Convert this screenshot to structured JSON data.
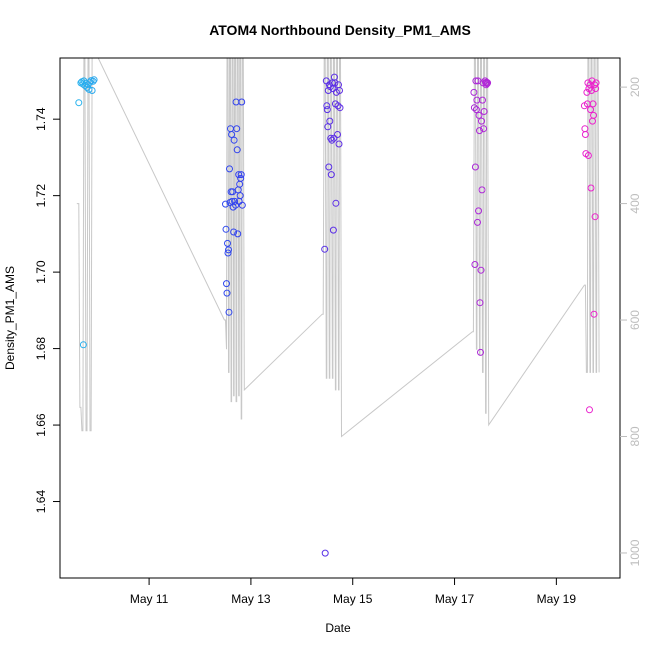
{
  "chart_data": {
    "type": "scatter",
    "title": "ATOM4 Northbound Density_PM1_AMS",
    "xlabel": "Date",
    "ylabel": "Density_PM1_AMS",
    "x_ticks": [
      {
        "label": "May 11",
        "day": 11
      },
      {
        "label": "May 13",
        "day": 13
      },
      {
        "label": "May 15",
        "day": 15
      },
      {
        "label": "May 17",
        "day": 17
      },
      {
        "label": "May 19",
        "day": 19
      }
    ],
    "y_ticks": [
      "1.64",
      "1.66",
      "1.68",
      "1.70",
      "1.72",
      "1.74"
    ],
    "y_tick_values": [
      1.64,
      1.66,
      1.68,
      1.7,
      1.72,
      1.74
    ],
    "xlim": [
      9.25,
      20.25
    ],
    "ylim": [
      1.62,
      1.756
    ],
    "y2_ticks": [
      "200",
      "400",
      "600",
      "800",
      "1000"
    ],
    "y2_tick_values": [
      200,
      400,
      600,
      800,
      1000
    ],
    "y2lim": [
      1043,
      150
    ],
    "colors": {
      "line": "#c8c8c8",
      "frame": "#000000",
      "right_axis": "#bdbdbd",
      "series_start": "#2ab4ee",
      "series_mid": "#3333ee",
      "series_end": "#ee22cc"
    },
    "points": [
      {
        "day": 9.62,
        "value": 1.7443
      },
      {
        "day": 9.66,
        "value": 1.7495
      },
      {
        "day": 9.68,
        "value": 1.7498
      },
      {
        "day": 9.7,
        "value": 1.7492
      },
      {
        "day": 9.72,
        "value": 1.75
      },
      {
        "day": 9.74,
        "value": 1.7488
      },
      {
        "day": 9.76,
        "value": 1.7494
      },
      {
        "day": 9.78,
        "value": 1.7483
      },
      {
        "day": 9.8,
        "value": 1.749
      },
      {
        "day": 9.82,
        "value": 1.7478
      },
      {
        "day": 9.84,
        "value": 1.7497
      },
      {
        "day": 9.86,
        "value": 1.7501
      },
      {
        "day": 9.88,
        "value": 1.7475
      },
      {
        "day": 9.9,
        "value": 1.7499
      },
      {
        "day": 9.92,
        "value": 1.7503
      },
      {
        "day": 9.71,
        "value": 1.681
      },
      {
        "day": 12.5,
        "value": 1.7178
      },
      {
        "day": 12.51,
        "value": 1.7112
      },
      {
        "day": 12.52,
        "value": 1.697
      },
      {
        "day": 12.53,
        "value": 1.6945
      },
      {
        "day": 12.54,
        "value": 1.7075
      },
      {
        "day": 12.55,
        "value": 1.705
      },
      {
        "day": 12.56,
        "value": 1.7058
      },
      {
        "day": 12.57,
        "value": 1.6895
      },
      {
        "day": 12.58,
        "value": 1.727
      },
      {
        "day": 12.59,
        "value": 1.7182
      },
      {
        "day": 12.6,
        "value": 1.7375
      },
      {
        "day": 12.61,
        "value": 1.721
      },
      {
        "day": 12.62,
        "value": 1.736
      },
      {
        "day": 12.63,
        "value": 1.7185
      },
      {
        "day": 12.64,
        "value": 1.721
      },
      {
        "day": 12.65,
        "value": 1.717
      },
      {
        "day": 12.66,
        "value": 1.7105
      },
      {
        "day": 12.67,
        "value": 1.7345
      },
      {
        "day": 12.68,
        "value": 1.7185
      },
      {
        "day": 12.7,
        "value": 1.7175
      },
      {
        "day": 12.71,
        "value": 1.7445
      },
      {
        "day": 12.72,
        "value": 1.7375
      },
      {
        "day": 12.73,
        "value": 1.732
      },
      {
        "day": 12.74,
        "value": 1.71
      },
      {
        "day": 12.75,
        "value": 1.7215
      },
      {
        "day": 12.76,
        "value": 1.7255
      },
      {
        "day": 12.77,
        "value": 1.7185
      },
      {
        "day": 12.78,
        "value": 1.723
      },
      {
        "day": 12.79,
        "value": 1.72
      },
      {
        "day": 12.8,
        "value": 1.7245
      },
      {
        "day": 12.81,
        "value": 1.7255
      },
      {
        "day": 12.82,
        "value": 1.7445
      },
      {
        "day": 12.83,
        "value": 1.7175
      },
      {
        "day": 14.45,
        "value": 1.706
      },
      {
        "day": 14.46,
        "value": 1.6265
      },
      {
        "day": 14.48,
        "value": 1.75
      },
      {
        "day": 14.49,
        "value": 1.7435
      },
      {
        "day": 14.5,
        "value": 1.7425
      },
      {
        "day": 14.51,
        "value": 1.738
      },
      {
        "day": 14.52,
        "value": 1.7475
      },
      {
        "day": 14.53,
        "value": 1.7275
      },
      {
        "day": 14.54,
        "value": 1.749
      },
      {
        "day": 14.55,
        "value": 1.7395
      },
      {
        "day": 14.56,
        "value": 1.7485
      },
      {
        "day": 14.57,
        "value": 1.735
      },
      {
        "day": 14.58,
        "value": 1.7255
      },
      {
        "day": 14.59,
        "value": 1.7345
      },
      {
        "day": 14.6,
        "value": 1.7495
      },
      {
        "day": 14.61,
        "value": 1.748
      },
      {
        "day": 14.62,
        "value": 1.711
      },
      {
        "day": 14.63,
        "value": 1.735
      },
      {
        "day": 14.64,
        "value": 1.751
      },
      {
        "day": 14.65,
        "value": 1.7495
      },
      {
        "day": 14.66,
        "value": 1.744
      },
      {
        "day": 14.67,
        "value": 1.718
      },
      {
        "day": 14.68,
        "value": 1.747
      },
      {
        "day": 14.7,
        "value": 1.736
      },
      {
        "day": 14.71,
        "value": 1.7435
      },
      {
        "day": 14.72,
        "value": 1.749
      },
      {
        "day": 14.73,
        "value": 1.7335
      },
      {
        "day": 14.74,
        "value": 1.7475
      },
      {
        "day": 14.75,
        "value": 1.743
      },
      {
        "day": 17.38,
        "value": 1.747
      },
      {
        "day": 17.39,
        "value": 1.743
      },
      {
        "day": 17.4,
        "value": 1.702
      },
      {
        "day": 17.41,
        "value": 1.7275
      },
      {
        "day": 17.42,
        "value": 1.75
      },
      {
        "day": 17.43,
        "value": 1.7425
      },
      {
        "day": 17.44,
        "value": 1.745
      },
      {
        "day": 17.45,
        "value": 1.713
      },
      {
        "day": 17.46,
        "value": 1.75
      },
      {
        "day": 17.47,
        "value": 1.716
      },
      {
        "day": 17.48,
        "value": 1.741
      },
      {
        "day": 17.49,
        "value": 1.737
      },
      {
        "day": 17.5,
        "value": 1.692
      },
      {
        "day": 17.51,
        "value": 1.679
      },
      {
        "day": 17.52,
        "value": 1.7005
      },
      {
        "day": 17.53,
        "value": 1.7395
      },
      {
        "day": 17.54,
        "value": 1.7215
      },
      {
        "day": 17.55,
        "value": 1.745
      },
      {
        "day": 17.56,
        "value": 1.7495
      },
      {
        "day": 17.57,
        "value": 1.7375
      },
      {
        "day": 17.58,
        "value": 1.742
      },
      {
        "day": 17.6,
        "value": 1.75
      },
      {
        "day": 17.61,
        "value": 1.7495
      },
      {
        "day": 17.62,
        "value": 1.749
      },
      {
        "day": 17.63,
        "value": 1.7497
      },
      {
        "day": 17.64,
        "value": 1.7493
      },
      {
        "day": 17.65,
        "value": 1.7495
      },
      {
        "day": 19.55,
        "value": 1.7435
      },
      {
        "day": 19.56,
        "value": 1.7375
      },
      {
        "day": 19.57,
        "value": 1.736
      },
      {
        "day": 19.58,
        "value": 1.731
      },
      {
        "day": 19.6,
        "value": 1.747
      },
      {
        "day": 19.61,
        "value": 1.744
      },
      {
        "day": 19.62,
        "value": 1.7495
      },
      {
        "day": 19.63,
        "value": 1.7305
      },
      {
        "day": 19.64,
        "value": 1.748
      },
      {
        "day": 19.65,
        "value": 1.664
      },
      {
        "day": 19.66,
        "value": 1.749
      },
      {
        "day": 19.67,
        "value": 1.7425
      },
      {
        "day": 19.68,
        "value": 1.722
      },
      {
        "day": 19.69,
        "value": 1.7475
      },
      {
        "day": 19.7,
        "value": 1.75
      },
      {
        "day": 19.71,
        "value": 1.7395
      },
      {
        "day": 19.72,
        "value": 1.744
      },
      {
        "day": 19.73,
        "value": 1.741
      },
      {
        "day": 19.74,
        "value": 1.689
      },
      {
        "day": 19.75,
        "value": 1.749
      },
      {
        "day": 19.76,
        "value": 1.7145
      },
      {
        "day": 19.77,
        "value": 1.748
      },
      {
        "day": 19.78,
        "value": 1.7495
      }
    ],
    "altitude_line": [
      [
        9.58,
        400
      ],
      [
        9.62,
        400
      ],
      [
        9.64,
        750
      ],
      [
        9.66,
        750
      ],
      [
        9.68,
        790
      ],
      [
        9.7,
        790
      ],
      [
        9.72,
        150
      ],
      [
        9.74,
        150
      ],
      [
        9.76,
        790
      ],
      [
        9.78,
        790
      ],
      [
        9.8,
        150
      ],
      [
        9.82,
        150
      ],
      [
        9.84,
        790
      ],
      [
        9.86,
        790
      ],
      [
        9.88,
        150
      ],
      [
        9.92,
        150
      ],
      [
        10.0,
        150
      ],
      [
        12.48,
        600
      ],
      [
        12.5,
        600
      ],
      [
        12.52,
        650
      ],
      [
        12.53,
        150
      ],
      [
        12.55,
        150
      ],
      [
        12.56,
        690
      ],
      [
        12.57,
        690
      ],
      [
        12.58,
        150
      ],
      [
        12.6,
        150
      ],
      [
        12.61,
        740
      ],
      [
        12.62,
        740
      ],
      [
        12.63,
        150
      ],
      [
        12.65,
        150
      ],
      [
        12.66,
        730
      ],
      [
        12.67,
        730
      ],
      [
        12.68,
        150
      ],
      [
        12.7,
        150
      ],
      [
        12.71,
        740
      ],
      [
        12.72,
        740
      ],
      [
        12.73,
        150
      ],
      [
        12.75,
        150
      ],
      [
        12.76,
        730
      ],
      [
        12.77,
        730
      ],
      [
        12.78,
        150
      ],
      [
        12.8,
        150
      ],
      [
        12.81,
        770
      ],
      [
        12.82,
        770
      ],
      [
        12.83,
        150
      ],
      [
        12.85,
        150
      ],
      [
        12.87,
        720
      ],
      [
        14.4,
        590
      ],
      [
        14.42,
        590
      ],
      [
        14.44,
        150
      ],
      [
        14.46,
        150
      ],
      [
        14.48,
        700
      ],
      [
        14.49,
        700
      ],
      [
        14.5,
        150
      ],
      [
        14.52,
        150
      ],
      [
        14.54,
        700
      ],
      [
        14.55,
        700
      ],
      [
        14.56,
        150
      ],
      [
        14.58,
        150
      ],
      [
        14.6,
        700
      ],
      [
        14.61,
        700
      ],
      [
        14.62,
        150
      ],
      [
        14.64,
        150
      ],
      [
        14.66,
        720
      ],
      [
        14.67,
        720
      ],
      [
        14.68,
        150
      ],
      [
        14.7,
        150
      ],
      [
        14.72,
        720
      ],
      [
        14.73,
        720
      ],
      [
        14.74,
        150
      ],
      [
        14.76,
        150
      ],
      [
        14.78,
        800
      ],
      [
        17.35,
        620
      ],
      [
        17.37,
        620
      ],
      [
        17.39,
        150
      ],
      [
        17.41,
        150
      ],
      [
        17.43,
        650
      ],
      [
        17.44,
        650
      ],
      [
        17.45,
        150
      ],
      [
        17.47,
        150
      ],
      [
        17.49,
        660
      ],
      [
        17.5,
        660
      ],
      [
        17.51,
        150
      ],
      [
        17.53,
        150
      ],
      [
        17.55,
        690
      ],
      [
        17.56,
        690
      ],
      [
        17.57,
        150
      ],
      [
        17.59,
        150
      ],
      [
        17.61,
        760
      ],
      [
        17.62,
        760
      ],
      [
        17.63,
        150
      ],
      [
        17.65,
        150
      ],
      [
        17.67,
        780
      ],
      [
        19.55,
        540
      ],
      [
        19.57,
        540
      ],
      [
        19.59,
        690
      ],
      [
        19.61,
        690
      ],
      [
        19.62,
        150
      ],
      [
        19.64,
        150
      ],
      [
        19.66,
        690
      ],
      [
        19.67,
        690
      ],
      [
        19.68,
        150
      ],
      [
        19.7,
        150
      ],
      [
        19.72,
        690
      ],
      [
        19.73,
        690
      ],
      [
        19.74,
        150
      ],
      [
        19.76,
        150
      ],
      [
        19.78,
        690
      ],
      [
        19.79,
        690
      ],
      [
        19.8,
        150
      ],
      [
        19.82,
        150
      ],
      [
        19.84,
        690
      ]
    ]
  }
}
